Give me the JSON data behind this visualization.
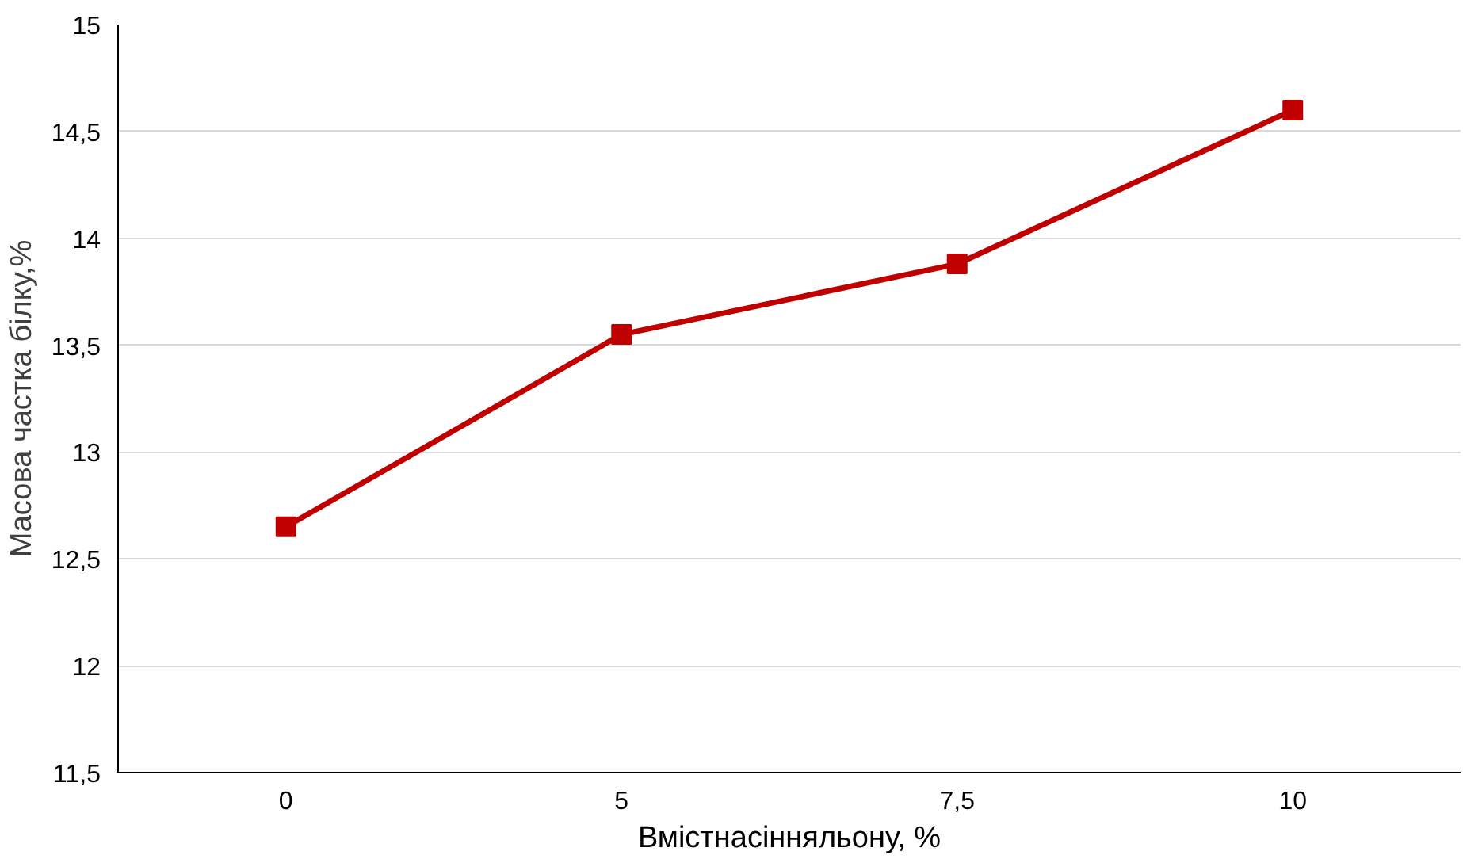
{
  "chart_data": {
    "type": "line",
    "xlabel": "Вмістнасінняльону, %",
    "ylabel": "Масова частка білку,%",
    "categories": [
      "0",
      "5",
      "7,5",
      "10"
    ],
    "series": [
      {
        "color": "#c00000",
        "values": [
          12.65,
          13.55,
          13.88,
          14.6
        ]
      }
    ],
    "ylim": [
      11.5,
      15
    ],
    "yticks": [
      {
        "value": 11.5,
        "label": "11,5"
      },
      12,
      {
        "value": 12.5,
        "label": "12,5"
      },
      13,
      {
        "value": 13.5,
        "label": "13,5"
      },
      14,
      {
        "value": 14.5,
        "label": "14,5"
      },
      15
    ],
    "grid": "y",
    "marker": "square",
    "line_style": "solid"
  }
}
